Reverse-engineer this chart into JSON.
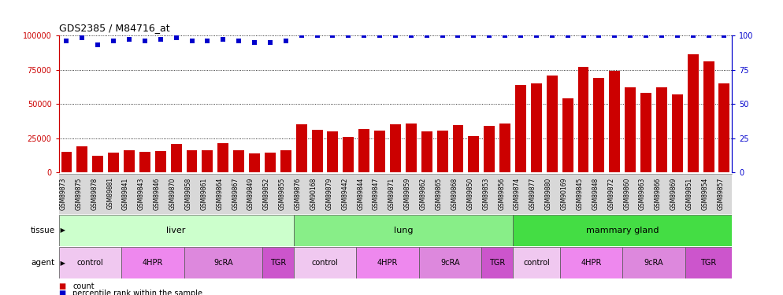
{
  "title": "GDS2385 / M84716_at",
  "samples": [
    "GSM89873",
    "GSM89875",
    "GSM89878",
    "GSM89881",
    "GSM89841",
    "GSM89843",
    "GSM89846",
    "GSM89870",
    "GSM89858",
    "GSM89861",
    "GSM89864",
    "GSM89867",
    "GSM89849",
    "GSM89852",
    "GSM89855",
    "GSM89876",
    "GSM90168",
    "GSM89879",
    "GSM89442",
    "GSM89844",
    "GSM89847",
    "GSM89871",
    "GSM89859",
    "GSM89862",
    "GSM89865",
    "GSM89868",
    "GSM89850",
    "GSM89853",
    "GSM89856",
    "GSM89874",
    "GSM89877",
    "GSM89880",
    "GSM90169",
    "GSM89845",
    "GSM89848",
    "GSM89872",
    "GSM89860",
    "GSM89863",
    "GSM89866",
    "GSM89869",
    "GSM89851",
    "GSM89854",
    "GSM89857"
  ],
  "counts": [
    15000,
    19000,
    12500,
    14500,
    16000,
    15000,
    15500,
    21000,
    16500,
    16000,
    21500,
    16500,
    14000,
    14500,
    16500,
    35000,
    31000,
    30000,
    26000,
    32000,
    30500,
    35000,
    35500,
    30000,
    30500,
    34500,
    26500,
    34000,
    35500,
    64000,
    65000,
    71000,
    54000,
    77000,
    69000,
    74000,
    62000,
    58000,
    62000,
    57000,
    86000,
    81000,
    65000
  ],
  "percentile_ranks": [
    96,
    98,
    93,
    96,
    97,
    96,
    97,
    98,
    96,
    96,
    97,
    96,
    95,
    95,
    96,
    100,
    100,
    100,
    100,
    100,
    100,
    100,
    100,
    100,
    100,
    100,
    100,
    100,
    100,
    100,
    100,
    100,
    100,
    100,
    100,
    100,
    100,
    100,
    100,
    100,
    100,
    100,
    100
  ],
  "tissue_groups": [
    {
      "label": "liver",
      "start": 0,
      "end": 14,
      "color": "#ccffcc"
    },
    {
      "label": "lung",
      "start": 15,
      "end": 28,
      "color": "#88ee88"
    },
    {
      "label": "mammary gland",
      "start": 29,
      "end": 42,
      "color": "#44dd44"
    }
  ],
  "agent_groups": [
    {
      "label": "control",
      "start": 0,
      "end": 3,
      "color": "#f0c8f0"
    },
    {
      "label": "4HPR",
      "start": 4,
      "end": 7,
      "color": "#ee88ee"
    },
    {
      "label": "9cRA",
      "start": 8,
      "end": 12,
      "color": "#dd88dd"
    },
    {
      "label": "TGR",
      "start": 13,
      "end": 14,
      "color": "#cc55cc"
    },
    {
      "label": "control",
      "start": 15,
      "end": 18,
      "color": "#f0c8f0"
    },
    {
      "label": "4HPR",
      "start": 19,
      "end": 22,
      "color": "#ee88ee"
    },
    {
      "label": "9cRA",
      "start": 23,
      "end": 26,
      "color": "#dd88dd"
    },
    {
      "label": "TGR",
      "start": 27,
      "end": 28,
      "color": "#cc55cc"
    },
    {
      "label": "control",
      "start": 29,
      "end": 31,
      "color": "#f0c8f0"
    },
    {
      "label": "4HPR",
      "start": 32,
      "end": 35,
      "color": "#ee88ee"
    },
    {
      "label": "9cRA",
      "start": 36,
      "end": 39,
      "color": "#dd88dd"
    },
    {
      "label": "TGR",
      "start": 40,
      "end": 42,
      "color": "#cc55cc"
    }
  ],
  "bar_color": "#cc0000",
  "dot_color": "#0000cc",
  "ylim_left": [
    0,
    100000
  ],
  "ylim_right": [
    0,
    100
  ],
  "yticks_left": [
    0,
    25000,
    50000,
    75000,
    100000
  ],
  "yticks_right": [
    0,
    25,
    50,
    75,
    100
  ],
  "plot_bg": "#ffffff",
  "label_band_bg": "#d8d8d8"
}
